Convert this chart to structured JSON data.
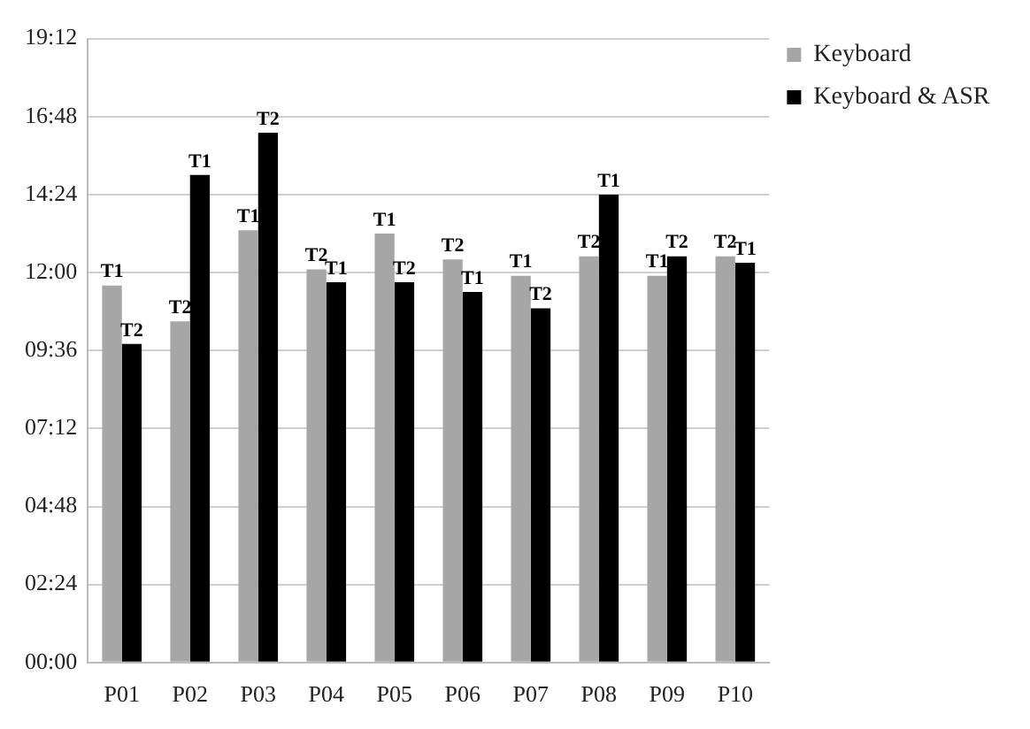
{
  "chart_data": {
    "type": "bar",
    "categories": [
      "P01",
      "P02",
      "P03",
      "P04",
      "P05",
      "P06",
      "P07",
      "P08",
      "P09",
      "P10"
    ],
    "series": [
      {
        "name": "Keyboard",
        "color": "#a6a6a6",
        "values": [
          11.6,
          10.5,
          13.3,
          12.1,
          13.2,
          12.4,
          11.9,
          12.5,
          11.9,
          12.5
        ],
        "value_labels": [
          "T1",
          "T2",
          "T1",
          "T2",
          "T1",
          "T2",
          "T1",
          "T2",
          "T1",
          "T2"
        ]
      },
      {
        "name": "Keyboard & ASR",
        "color": "#000000",
        "values": [
          9.8,
          15.0,
          16.3,
          11.7,
          11.7,
          11.4,
          10.9,
          14.4,
          12.5,
          12.3
        ],
        "value_labels": [
          "T2",
          "T1",
          "T2",
          "T1",
          "T2",
          "T1",
          "T2",
          "T1",
          "T2",
          "T1"
        ]
      }
    ],
    "ylim": [
      0,
      19.2
    ],
    "yticks": [
      {
        "value": 0,
        "label": "00:00"
      },
      {
        "value": 2.4,
        "label": "02:24"
      },
      {
        "value": 4.8,
        "label": "04:48"
      },
      {
        "value": 7.2,
        "label": "07:12"
      },
      {
        "value": 9.6,
        "label": "09:36"
      },
      {
        "value": 12,
        "label": "12:00"
      },
      {
        "value": 14.4,
        "label": "14:24"
      },
      {
        "value": 16.8,
        "label": "16:48"
      },
      {
        "value": 19.2,
        "label": "19:12"
      }
    ],
    "grid": "y",
    "legend": "top right"
  }
}
